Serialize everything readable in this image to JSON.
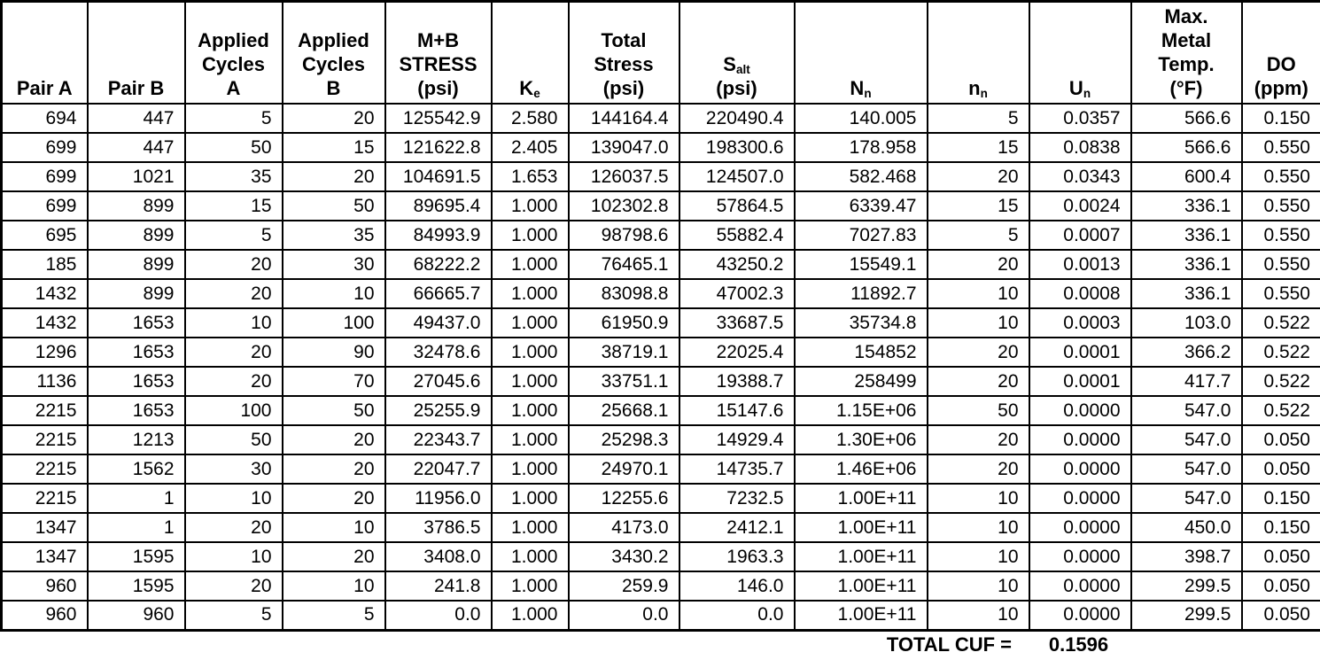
{
  "table": {
    "headers": {
      "pair_a": "Pair A",
      "pair_b": "Pair B",
      "applied_cycles_a": [
        "Applied",
        "Cycles",
        "A"
      ],
      "applied_cycles_b": [
        "Applied",
        "Cycles",
        "B"
      ],
      "mb_stress": [
        "M+B",
        "STRESS",
        "(psi)"
      ],
      "ke": {
        "main": "K",
        "sub": "e"
      },
      "total_stress": [
        "Total",
        "Stress",
        "(psi)"
      ],
      "salt": {
        "main": "S",
        "sub": "alt",
        "unit": "(psi)"
      },
      "nn_allowable": {
        "main": "N",
        "sub": "n"
      },
      "nn_applied": {
        "main": "n",
        "sub": "n"
      },
      "un": {
        "main": "U",
        "sub": "n"
      },
      "max_metal_temp": [
        "Max.",
        "Metal",
        "Temp.",
        "(°F)"
      ],
      "do_ppm": [
        "DO",
        "(ppm)"
      ]
    },
    "rows": [
      [
        "694",
        "447",
        "5",
        "20",
        "125542.9",
        "2.580",
        "144164.4",
        "220490.4",
        "140.005",
        "5",
        "0.0357",
        "566.6",
        "0.150"
      ],
      [
        "699",
        "447",
        "50",
        "15",
        "121622.8",
        "2.405",
        "139047.0",
        "198300.6",
        "178.958",
        "15",
        "0.0838",
        "566.6",
        "0.550"
      ],
      [
        "699",
        "1021",
        "35",
        "20",
        "104691.5",
        "1.653",
        "126037.5",
        "124507.0",
        "582.468",
        "20",
        "0.0343",
        "600.4",
        "0.550"
      ],
      [
        "699",
        "899",
        "15",
        "50",
        "89695.4",
        "1.000",
        "102302.8",
        "57864.5",
        "6339.47",
        "15",
        "0.0024",
        "336.1",
        "0.550"
      ],
      [
        "695",
        "899",
        "5",
        "35",
        "84993.9",
        "1.000",
        "98798.6",
        "55882.4",
        "7027.83",
        "5",
        "0.0007",
        "336.1",
        "0.550"
      ],
      [
        "185",
        "899",
        "20",
        "30",
        "68222.2",
        "1.000",
        "76465.1",
        "43250.2",
        "15549.1",
        "20",
        "0.0013",
        "336.1",
        "0.550"
      ],
      [
        "1432",
        "899",
        "20",
        "10",
        "66665.7",
        "1.000",
        "83098.8",
        "47002.3",
        "11892.7",
        "10",
        "0.0008",
        "336.1",
        "0.550"
      ],
      [
        "1432",
        "1653",
        "10",
        "100",
        "49437.0",
        "1.000",
        "61950.9",
        "33687.5",
        "35734.8",
        "10",
        "0.0003",
        "103.0",
        "0.522"
      ],
      [
        "1296",
        "1653",
        "20",
        "90",
        "32478.6",
        "1.000",
        "38719.1",
        "22025.4",
        "154852",
        "20",
        "0.0001",
        "366.2",
        "0.522"
      ],
      [
        "1136",
        "1653",
        "20",
        "70",
        "27045.6",
        "1.000",
        "33751.1",
        "19388.7",
        "258499",
        "20",
        "0.0001",
        "417.7",
        "0.522"
      ],
      [
        "2215",
        "1653",
        "100",
        "50",
        "25255.9",
        "1.000",
        "25668.1",
        "15147.6",
        "1.15E+06",
        "50",
        "0.0000",
        "547.0",
        "0.522"
      ],
      [
        "2215",
        "1213",
        "50",
        "20",
        "22343.7",
        "1.000",
        "25298.3",
        "14929.4",
        "1.30E+06",
        "20",
        "0.0000",
        "547.0",
        "0.050"
      ],
      [
        "2215",
        "1562",
        "30",
        "20",
        "22047.7",
        "1.000",
        "24970.1",
        "14735.7",
        "1.46E+06",
        "20",
        "0.0000",
        "547.0",
        "0.050"
      ],
      [
        "2215",
        "1",
        "10",
        "20",
        "11956.0",
        "1.000",
        "12255.6",
        "7232.5",
        "1.00E+11",
        "10",
        "0.0000",
        "547.0",
        "0.150"
      ],
      [
        "1347",
        "1",
        "20",
        "10",
        "3786.5",
        "1.000",
        "4173.0",
        "2412.1",
        "1.00E+11",
        "10",
        "0.0000",
        "450.0",
        "0.150"
      ],
      [
        "1347",
        "1595",
        "10",
        "20",
        "3408.0",
        "1.000",
        "3430.2",
        "1963.3",
        "1.00E+11",
        "10",
        "0.0000",
        "398.7",
        "0.050"
      ],
      [
        "960",
        "1595",
        "20",
        "10",
        "241.8",
        "1.000",
        "259.9",
        "146.0",
        "1.00E+11",
        "10",
        "0.0000",
        "299.5",
        "0.050"
      ],
      [
        "960",
        "960",
        "5",
        "5",
        "0.0",
        "1.000",
        "0.0",
        "0.0",
        "1.00E+11",
        "10",
        "0.0000",
        "299.5",
        "0.050"
      ]
    ],
    "footer": {
      "label": "TOTAL CUF =",
      "value": "0.1596"
    }
  }
}
